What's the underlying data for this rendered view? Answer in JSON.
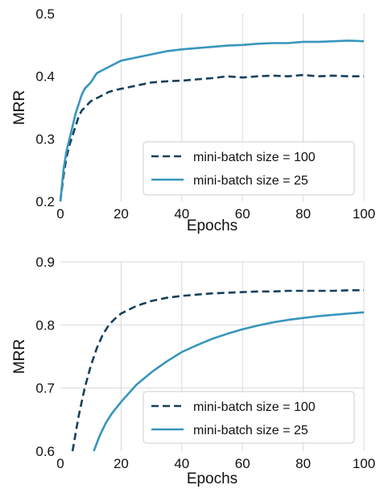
{
  "colors": {
    "dark": "#17405c",
    "light": "#3796bd",
    "grid": "#d9d9d9",
    "legend_border": "#cccccc"
  },
  "chart_data": [
    {
      "type": "line",
      "xlabel": "Epochs",
      "ylabel": "MRR",
      "xlim": [
        0,
        100
      ],
      "ylim": [
        0.2,
        0.5
      ],
      "x_ticks": [
        "0",
        "20",
        "40",
        "60",
        "80",
        "100"
      ],
      "y_ticks": [
        "0.2",
        "0.3",
        "0.4",
        "0.5"
      ],
      "grid": "vertical",
      "legend_position": "lower-right",
      "series": [
        {
          "name": "mini-batch size = 100",
          "style": "dashed",
          "color": "#17405c",
          "x": [
            0,
            1,
            2,
            3,
            4,
            5,
            6,
            7,
            8,
            9,
            10,
            12,
            14,
            16,
            18,
            20,
            25,
            30,
            35,
            40,
            45,
            50,
            55,
            60,
            65,
            70,
            75,
            80,
            85,
            90,
            95,
            100
          ],
          "values": [
            0.2,
            0.24,
            0.27,
            0.29,
            0.305,
            0.32,
            0.335,
            0.345,
            0.35,
            0.355,
            0.36,
            0.365,
            0.37,
            0.375,
            0.378,
            0.38,
            0.385,
            0.39,
            0.392,
            0.393,
            0.395,
            0.397,
            0.4,
            0.398,
            0.4,
            0.401,
            0.4,
            0.402,
            0.4,
            0.401,
            0.4,
            0.4
          ]
        },
        {
          "name": "mini-batch size = 25",
          "style": "solid",
          "color": "#3796bd",
          "x": [
            0,
            1,
            2,
            3,
            4,
            5,
            6,
            7,
            8,
            9,
            10,
            12,
            14,
            16,
            18,
            20,
            25,
            30,
            35,
            40,
            45,
            50,
            55,
            60,
            65,
            70,
            75,
            80,
            85,
            90,
            95,
            100
          ],
          "values": [
            0.2,
            0.25,
            0.28,
            0.3,
            0.32,
            0.34,
            0.355,
            0.37,
            0.38,
            0.385,
            0.39,
            0.405,
            0.41,
            0.415,
            0.42,
            0.425,
            0.43,
            0.435,
            0.44,
            0.443,
            0.445,
            0.447,
            0.449,
            0.45,
            0.452,
            0.453,
            0.453,
            0.455,
            0.455,
            0.456,
            0.457,
            0.456
          ]
        }
      ]
    },
    {
      "type": "line",
      "xlabel": "Epochs",
      "ylabel": "MRR",
      "xlim": [
        0,
        100
      ],
      "ylim": [
        0.6,
        0.9
      ],
      "x_ticks": [
        "0",
        "20",
        "40",
        "60",
        "80",
        "100"
      ],
      "y_ticks": [
        "0.6",
        "0.7",
        "0.8",
        "0.9"
      ],
      "grid": "both",
      "legend_position": "lower-right",
      "series": [
        {
          "name": "mini-batch size = 100",
          "style": "dashed",
          "color": "#17405c",
          "x": [
            4,
            6,
            8,
            10,
            12,
            14,
            16,
            18,
            20,
            25,
            30,
            35,
            40,
            45,
            50,
            55,
            60,
            65,
            70,
            75,
            80,
            85,
            90,
            95,
            100
          ],
          "values": [
            0.6,
            0.655,
            0.7,
            0.735,
            0.763,
            0.785,
            0.8,
            0.81,
            0.818,
            0.83,
            0.838,
            0.843,
            0.846,
            0.848,
            0.85,
            0.851,
            0.852,
            0.853,
            0.853,
            0.854,
            0.854,
            0.854,
            0.854,
            0.855,
            0.855
          ]
        },
        {
          "name": "mini-batch size = 25",
          "style": "solid",
          "color": "#3796bd",
          "x": [
            11,
            13,
            15,
            17,
            20,
            25,
            30,
            35,
            40,
            45,
            50,
            55,
            60,
            65,
            70,
            75,
            80,
            85,
            90,
            95,
            100
          ],
          "values": [
            0.6,
            0.625,
            0.645,
            0.66,
            0.678,
            0.705,
            0.725,
            0.742,
            0.757,
            0.768,
            0.778,
            0.786,
            0.793,
            0.799,
            0.804,
            0.808,
            0.811,
            0.814,
            0.816,
            0.818,
            0.82
          ]
        }
      ]
    }
  ]
}
